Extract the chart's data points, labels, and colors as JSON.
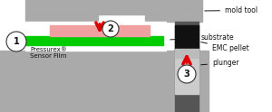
{
  "fig_width": 3.0,
  "fig_height": 1.24,
  "dpi": 100,
  "bg_color": "#ffffff",
  "gray_mold": "#aaaaaa",
  "gray_dark": "#888888",
  "green_color": "#00cc00",
  "pink_color": "#f0a0a0",
  "black_color": "#111111",
  "red_color": "#dd0000",
  "white_color": "#ffffff",
  "circle_color": "#e8e8e8",
  "labels": {
    "mold_tool": "mold tool",
    "substrate": "substrate",
    "emc_pellet": "EMC pellet",
    "plunger": "plunger",
    "pressurex": "Pressurex®\nSensor Film",
    "num1": "1",
    "num2": "2",
    "num3": "3"
  }
}
